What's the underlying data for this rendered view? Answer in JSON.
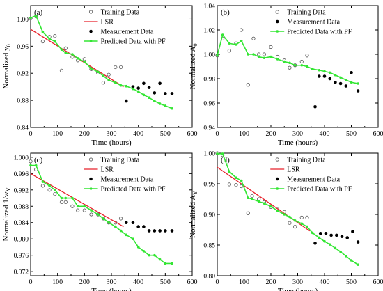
{
  "figure": {
    "legend_labels": {
      "training": "Training Data",
      "lsr": "LSR",
      "measurement": "Measurement Data",
      "pf": "Predicted Data with PF"
    },
    "colors": {
      "training": "#555555",
      "lsr": "#e8202a",
      "measurement": "#000000",
      "pf": "#33e633",
      "axis": "#000000"
    }
  },
  "chart_data": [
    {
      "panel_label": "(a)",
      "type": "line",
      "xlabel": "Time (hours)",
      "ylabel": "Normalized y",
      "ylabel_sub": "0",
      "xlim": [
        0,
        600
      ],
      "ylim": [
        0.84,
        1.02
      ],
      "xticks": [
        0,
        100,
        200,
        300,
        400,
        500,
        600
      ],
      "yticks": [
        0.84,
        0.88,
        0.92,
        0.96,
        1.0
      ],
      "ytick_labels": [
        "0.84",
        "0.88",
        "0.92",
        "0.96",
        "1.00"
      ],
      "legend_position": "top-right",
      "grid": false,
      "series": [
        {
          "name": "Training Data",
          "kind": "scatter-open",
          "x": [
            0,
            20,
            45,
            70,
            90,
            115,
            130,
            155,
            175,
            200,
            225,
            250,
            270,
            290,
            315,
            335
          ],
          "y": [
            1.001,
            1.004,
            0.967,
            0.974,
            0.975,
            0.924,
            0.957,
            0.944,
            0.939,
            0.941,
            0.926,
            0.921,
            0.906,
            0.918,
            0.929,
            0.929
          ]
        },
        {
          "name": "LSR",
          "kind": "line",
          "x": [
            0,
            345
          ],
          "y": [
            0.985,
            0.9
          ]
        },
        {
          "name": "Measurement Data",
          "kind": "scatter-filled",
          "x": [
            355,
            380,
            400,
            420,
            440,
            460,
            480,
            500,
            525
          ],
          "y": [
            0.879,
            0.9,
            0.898,
            0.905,
            0.899,
            0.891,
            0.905,
            0.89,
            0.89
          ]
        },
        {
          "name": "Predicted Data with PF",
          "kind": "line-markers",
          "x": [
            0,
            20,
            45,
            70,
            90,
            115,
            130,
            155,
            175,
            200,
            225,
            250,
            270,
            290,
            315,
            335,
            355,
            380,
            400,
            420,
            440,
            460,
            480,
            500,
            525
          ],
          "y": [
            1.002,
            1.005,
            0.981,
            0.971,
            0.967,
            0.955,
            0.95,
            0.948,
            0.942,
            0.937,
            0.927,
            0.922,
            0.916,
            0.91,
            0.906,
            0.902,
            0.901,
            0.897,
            0.893,
            0.888,
            0.884,
            0.879,
            0.875,
            0.872,
            0.868
          ]
        }
      ]
    },
    {
      "panel_label": "(b)",
      "type": "line",
      "xlabel": "Time (hours)",
      "ylabel": "Normalized A",
      "ylabel_sub": "0",
      "xlim": [
        0,
        600
      ],
      "ylim": [
        0.94,
        1.04
      ],
      "xticks": [
        0,
        100,
        200,
        300,
        400,
        500,
        600
      ],
      "yticks": [
        0.94,
        0.96,
        0.98,
        1.0,
        1.02,
        1.04
      ],
      "ytick_labels": [
        "0.94",
        "0.96",
        "0.98",
        "1.00",
        "1.02",
        "1.04"
      ],
      "legend_position": "top-right",
      "grid": false,
      "series": [
        {
          "name": "Training Data",
          "kind": "scatter-open",
          "x": [
            0,
            20,
            45,
            70,
            90,
            115,
            135,
            155,
            175,
            200,
            225,
            250,
            270,
            290,
            315,
            335
          ],
          "y": [
            0.999,
            1.013,
            1.003,
            1.009,
            1.02,
            0.975,
            1.013,
            1.0,
            1.0,
            1.006,
            0.998,
            0.995,
            0.989,
            0.991,
            0.994,
            0.999
          ]
        },
        {
          "name": "Measurement Data",
          "kind": "scatter-filled",
          "x": [
            365,
            380,
            400,
            420,
            440,
            460,
            480,
            500,
            525
          ],
          "y": [
            0.957,
            0.982,
            0.982,
            0.98,
            0.977,
            0.976,
            0.974,
            0.985,
            0.97
          ]
        },
        {
          "name": "Predicted Data with PF",
          "kind": "line-markers",
          "x": [
            0,
            20,
            45,
            70,
            90,
            115,
            135,
            155,
            175,
            200,
            225,
            250,
            270,
            290,
            315,
            335,
            355,
            380,
            400,
            420,
            440,
            460,
            480,
            500,
            525
          ],
          "y": [
            0.999,
            1.016,
            1.009,
            1.008,
            1.011,
            1.0,
            1.0,
            0.998,
            0.997,
            0.998,
            0.996,
            0.994,
            0.993,
            0.991,
            0.991,
            0.99,
            0.988,
            0.987,
            0.986,
            0.985,
            0.983,
            0.981,
            0.979,
            0.977,
            0.976
          ]
        }
      ]
    },
    {
      "panel_label": "(c)",
      "type": "line",
      "xlabel": "Time (hours)",
      "ylabel": "Normalized 1/w",
      "ylabel_sub": "Y",
      "xlim": [
        0,
        600
      ],
      "ylim": [
        0.971,
        1.001
      ],
      "xticks": [
        0,
        100,
        200,
        300,
        400,
        500,
        600
      ],
      "yticks": [
        0.972,
        0.976,
        0.98,
        0.984,
        0.988,
        0.992,
        0.996,
        1.0
      ],
      "ytick_labels": [
        "0.972",
        "0.976",
        "0.980",
        "0.984",
        "0.988",
        "0.992",
        "0.996",
        "1.000"
      ],
      "legend_position": "top-right",
      "grid": false,
      "series": [
        {
          "name": "Training Data",
          "kind": "scatter-open",
          "x": [
            0,
            20,
            45,
            70,
            90,
            115,
            130,
            155,
            175,
            200,
            225,
            250,
            270,
            290,
            315,
            335
          ],
          "y": [
            0.999,
            0.997,
            0.993,
            0.992,
            0.991,
            0.989,
            0.989,
            0.988,
            0.987,
            0.987,
            0.986,
            0.986,
            0.985,
            0.984,
            0.984,
            0.985
          ]
        },
        {
          "name": "LSR",
          "kind": "line",
          "x": [
            0,
            345
          ],
          "y": [
            0.996,
            0.983
          ]
        },
        {
          "name": "Measurement Data",
          "kind": "scatter-filled",
          "x": [
            355,
            380,
            400,
            420,
            440,
            460,
            480,
            500,
            525
          ],
          "y": [
            0.984,
            0.984,
            0.983,
            0.983,
            0.982,
            0.982,
            0.982,
            0.982,
            0.982
          ]
        },
        {
          "name": "Predicted Data with PF",
          "kind": "line-markers",
          "x": [
            0,
            20,
            45,
            70,
            90,
            115,
            130,
            155,
            175,
            200,
            225,
            250,
            270,
            290,
            315,
            335,
            355,
            380,
            400,
            420,
            440,
            460,
            480,
            500,
            525
          ],
          "y": [
            0.998,
            0.998,
            0.994,
            0.993,
            0.992,
            0.99,
            0.99,
            0.99,
            0.988,
            0.988,
            0.987,
            0.986,
            0.985,
            0.984,
            0.983,
            0.982,
            0.981,
            0.98,
            0.978,
            0.977,
            0.976,
            0.976,
            0.975,
            0.974,
            0.974
          ]
        }
      ]
    },
    {
      "panel_label": "(d)",
      "type": "line",
      "xlabel": "Time (hours)",
      "ylabel": "Normalized A",
      "ylabel_sub": "Y",
      "xlim": [
        0,
        600
      ],
      "ylim": [
        0.8,
        1.0
      ],
      "xticks": [
        0,
        100,
        200,
        300,
        400,
        500,
        600
      ],
      "yticks": [
        0.8,
        0.85,
        0.9,
        0.95,
        1.0
      ],
      "ytick_labels": [
        "0.80",
        "0.85",
        "0.90",
        "0.95",
        "1.00"
      ],
      "legend_position": "top-right",
      "grid": false,
      "series": [
        {
          "name": "Training Data",
          "kind": "scatter-open",
          "x": [
            0,
            20,
            45,
            70,
            90,
            115,
            130,
            155,
            175,
            200,
            225,
            250,
            270,
            290,
            315,
            335
          ],
          "y": [
            1.0,
            0.997,
            0.949,
            0.948,
            0.946,
            0.902,
            0.93,
            0.925,
            0.92,
            0.912,
            0.908,
            0.904,
            0.886,
            0.88,
            0.895,
            0.895
          ]
        },
        {
          "name": "LSR",
          "kind": "line",
          "x": [
            0,
            345
          ],
          "y": [
            0.977,
            0.873
          ]
        },
        {
          "name": "Measurement Data",
          "kind": "scatter-filled",
          "x": [
            365,
            385,
            405,
            425,
            445,
            465,
            485,
            505,
            525
          ],
          "y": [
            0.853,
            0.869,
            0.869,
            0.866,
            0.866,
            0.864,
            0.862,
            0.872,
            0.855
          ]
        },
        {
          "name": "Predicted Data with PF",
          "kind": "line-markers",
          "x": [
            0,
            20,
            45,
            70,
            90,
            115,
            130,
            155,
            175,
            200,
            225,
            250,
            270,
            290,
            315,
            335,
            355,
            380,
            400,
            420,
            440,
            460,
            480,
            500,
            525
          ],
          "y": [
            0.999,
            0.999,
            0.97,
            0.96,
            0.955,
            0.927,
            0.925,
            0.921,
            0.918,
            0.913,
            0.906,
            0.9,
            0.896,
            0.89,
            0.885,
            0.88,
            0.87,
            0.862,
            0.856,
            0.851,
            0.845,
            0.839,
            0.832,
            0.825,
            0.818
          ]
        }
      ]
    }
  ]
}
